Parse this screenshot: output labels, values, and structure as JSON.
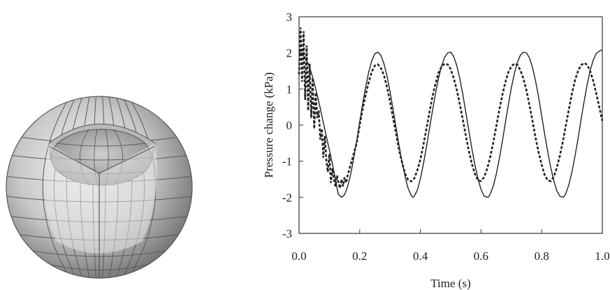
{
  "chart_data": [
    {
      "type": "3d-mesh",
      "description": "shaded spherical mesh with a partially cut-away shell exposing an inner sphere"
    },
    {
      "type": "line",
      "xlabel": "Time (s)",
      "ylabel": "Pressure change (kPa)",
      "xlim": [
        0.0,
        1.0
      ],
      "ylim": [
        -3,
        3
      ],
      "xticks": [
        "0.0",
        "0.2",
        "0.4",
        "0.6",
        "0.8",
        "1.0"
      ],
      "yticks": [
        "-3",
        "-2",
        "-1",
        "0",
        "1",
        "2",
        "3"
      ],
      "grid": false,
      "series": [
        {
          "style": "solid",
          "x": [
            0.0,
            0.01,
            0.02,
            0.03,
            0.04,
            0.05,
            0.06,
            0.07,
            0.08,
            0.09,
            0.1,
            0.11,
            0.12,
            0.125,
            0.13,
            0.14,
            0.15,
            0.16,
            0.17,
            0.18,
            0.19,
            0.2,
            0.21,
            0.22,
            0.23,
            0.24,
            0.25,
            0.26,
            0.27,
            0.28,
            0.29,
            0.3,
            0.31,
            0.32,
            0.33,
            0.34,
            0.35,
            0.36,
            0.37,
            0.375,
            0.38,
            0.39,
            0.4,
            0.41,
            0.42,
            0.43,
            0.44,
            0.45,
            0.46,
            0.47,
            0.48,
            0.49,
            0.5,
            0.51,
            0.52,
            0.53,
            0.54,
            0.55,
            0.56,
            0.57,
            0.58,
            0.59,
            0.6,
            0.61,
            0.62,
            0.625,
            0.63,
            0.64,
            0.65,
            0.66,
            0.67,
            0.68,
            0.69,
            0.7,
            0.71,
            0.72,
            0.73,
            0.74,
            0.75,
            0.76,
            0.77,
            0.78,
            0.79,
            0.8,
            0.81,
            0.82,
            0.83,
            0.84,
            0.85,
            0.86,
            0.87,
            0.875,
            0.88,
            0.89,
            0.9,
            0.91,
            0.92,
            0.93,
            0.94,
            0.95,
            0.96,
            0.97,
            0.98,
            0.99,
            1.0
          ],
          "y": [
            2.0,
            1.97,
            1.87,
            1.7,
            1.46,
            1.17,
            0.83,
            0.46,
            0.07,
            -0.32,
            -0.69,
            -1.07,
            -1.5,
            -1.75,
            -1.92,
            -2.0,
            -1.93,
            -1.71,
            -1.37,
            -0.93,
            -0.43,
            0.09,
            0.6,
            1.07,
            1.48,
            1.79,
            1.98,
            2.02,
            1.93,
            1.7,
            1.36,
            0.93,
            0.44,
            -0.08,
            -0.58,
            -1.04,
            -1.44,
            -1.76,
            -1.95,
            -2.0,
            -1.97,
            -1.8,
            -1.49,
            -1.08,
            -0.61,
            -0.1,
            0.4,
            0.88,
            1.3,
            1.64,
            1.88,
            2.0,
            2.02,
            1.9,
            1.65,
            1.29,
            0.85,
            0.35,
            -0.16,
            -0.66,
            -1.11,
            -1.49,
            -1.78,
            -1.96,
            -2.0,
            -1.99,
            -1.92,
            -1.7,
            -1.37,
            -0.95,
            -0.47,
            0.05,
            0.56,
            1.03,
            1.43,
            1.74,
            1.94,
            2.02,
            2.0,
            1.86,
            1.59,
            1.22,
            0.77,
            0.26,
            -0.25,
            -0.74,
            -1.18,
            -1.54,
            -1.82,
            -1.97,
            -2.0,
            -1.97,
            -1.89,
            -1.64,
            -1.29,
            -0.86,
            -0.37,
            0.15,
            0.66,
            1.12,
            1.51,
            1.8,
            1.98,
            2.05,
            2.08
          ]
        },
        {
          "style": "dashed",
          "x": [
            0.0,
            0.005,
            0.01,
            0.015,
            0.02,
            0.025,
            0.03,
            0.035,
            0.04,
            0.045,
            0.05,
            0.055,
            0.06,
            0.065,
            0.07,
            0.075,
            0.08,
            0.085,
            0.09,
            0.095,
            0.1,
            0.105,
            0.11,
            0.115,
            0.12,
            0.125,
            0.13,
            0.135,
            0.14,
            0.145,
            0.15,
            0.155,
            0.16,
            0.17,
            0.18,
            0.19,
            0.2,
            0.21,
            0.22,
            0.23,
            0.24,
            0.25,
            0.26,
            0.27,
            0.28,
            0.29,
            0.3,
            0.31,
            0.32,
            0.33,
            0.34,
            0.35,
            0.36,
            0.37,
            0.38,
            0.39,
            0.4,
            0.41,
            0.42,
            0.43,
            0.44,
            0.45,
            0.46,
            0.47,
            0.48,
            0.49,
            0.5,
            0.51,
            0.52,
            0.53,
            0.54,
            0.55,
            0.56,
            0.57,
            0.58,
            0.59,
            0.6,
            0.61,
            0.62,
            0.63,
            0.64,
            0.65,
            0.66,
            0.67,
            0.68,
            0.69,
            0.7,
            0.71,
            0.72,
            0.73,
            0.74,
            0.75,
            0.76,
            0.77,
            0.78,
            0.79,
            0.8,
            0.81,
            0.82,
            0.83,
            0.84,
            0.85,
            0.86,
            0.87,
            0.88,
            0.89,
            0.9,
            0.91,
            0.92,
            0.93,
            0.94,
            0.95,
            0.96,
            0.97,
            0.98,
            0.99,
            1.0
          ],
          "y": [
            1.4,
            2.7,
            1.2,
            2.6,
            0.7,
            2.2,
            0.4,
            1.7,
            0.2,
            1.3,
            -0.1,
            0.9,
            0.2,
            0.4,
            -0.4,
            -0.1,
            -0.9,
            -0.3,
            -1.0,
            -1.3,
            -0.8,
            -1.6,
            -1.2,
            -1.5,
            -1.7,
            -1.4,
            -1.6,
            -1.75,
            -1.5,
            -1.7,
            -1.45,
            -1.6,
            -1.4,
            -1.1,
            -0.8,
            -0.5,
            0.0,
            0.45,
            0.85,
            1.2,
            1.48,
            1.65,
            1.68,
            1.58,
            1.38,
            1.05,
            0.65,
            0.2,
            -0.25,
            -0.7,
            -1.05,
            -1.35,
            -1.52,
            -1.56,
            -1.48,
            -1.25,
            -0.95,
            -0.55,
            -0.1,
            0.35,
            0.8,
            1.15,
            1.45,
            1.62,
            1.7,
            1.68,
            1.55,
            1.3,
            0.98,
            0.58,
            0.15,
            -0.3,
            -0.72,
            -1.08,
            -1.36,
            -1.53,
            -1.55,
            -1.45,
            -1.22,
            -0.9,
            -0.5,
            -0.05,
            0.4,
            0.82,
            1.18,
            1.46,
            1.63,
            1.7,
            1.67,
            1.52,
            1.28,
            0.95,
            0.55,
            0.1,
            -0.35,
            -0.76,
            -1.1,
            -1.38,
            -1.53,
            -1.55,
            -1.43,
            -1.18,
            -0.85,
            -0.45,
            0.0,
            0.45,
            0.88,
            1.24,
            1.5,
            1.66,
            1.72,
            1.67,
            1.5,
            1.22,
            0.88,
            0.5,
            0.12
          ]
        }
      ]
    }
  ]
}
